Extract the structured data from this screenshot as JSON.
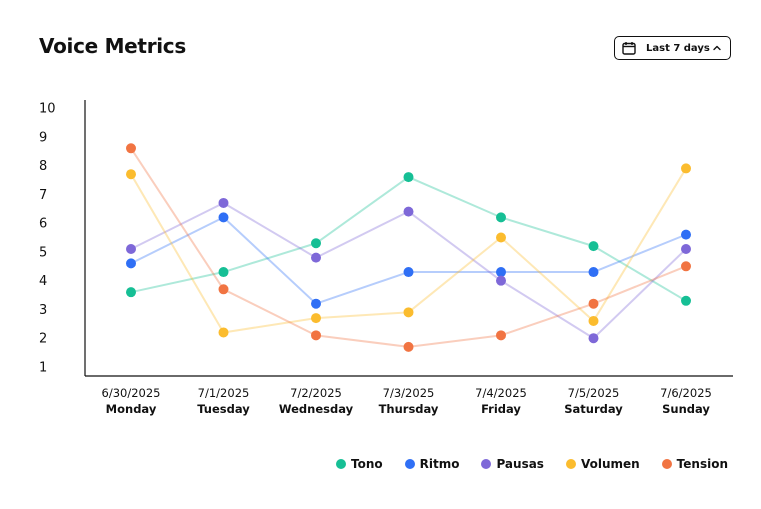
{
  "header": {
    "title": "Voice Metrics",
    "date_range_label": "Last 7 days",
    "calendar_icon": "calendar-icon",
    "toggle_icon": "chevron-up-icon"
  },
  "chart_data": {
    "type": "line",
    "title": "Voice Metrics",
    "xlabel": "",
    "ylabel": "",
    "ylim": [
      1,
      10
    ],
    "yticks": [
      "1",
      "2",
      "3",
      "4",
      "5",
      "6",
      "7",
      "8",
      "9",
      "10"
    ],
    "grid": false,
    "legend_position": "bottom-right",
    "categories": [
      {
        "date": "6/30/2025",
        "day": "Monday"
      },
      {
        "date": "7/1/2025",
        "day": "Tuesday"
      },
      {
        "date": "7/2/2025",
        "day": "Wednesday"
      },
      {
        "date": "7/3/2025",
        "day": "Thursday"
      },
      {
        "date": "7/4/2025",
        "day": "Friday"
      },
      {
        "date": "7/5/2025",
        "day": "Saturday"
      },
      {
        "date": "7/6/2025",
        "day": "Sunday"
      }
    ],
    "series": [
      {
        "name": "Tono",
        "color": "#16bf95",
        "values": [
          3.6,
          4.3,
          5.3,
          7.6,
          6.2,
          5.2,
          3.3
        ]
      },
      {
        "name": "Ritmo",
        "color": "#2f6ff5",
        "values": [
          4.6,
          6.2,
          3.2,
          4.3,
          4.3,
          4.3,
          5.6
        ]
      },
      {
        "name": "Pausas",
        "color": "#7e68d8",
        "values": [
          5.1,
          6.7,
          4.8,
          6.4,
          4.0,
          2.0,
          5.1
        ]
      },
      {
        "name": "Volumen",
        "color": "#fbbc2e",
        "values": [
          7.7,
          2.2,
          2.7,
          2.9,
          5.5,
          2.6,
          7.9
        ]
      },
      {
        "name": "Tension",
        "color": "#f17442",
        "values": [
          8.6,
          3.7,
          2.1,
          1.7,
          2.1,
          3.2,
          4.5
        ]
      }
    ]
  }
}
